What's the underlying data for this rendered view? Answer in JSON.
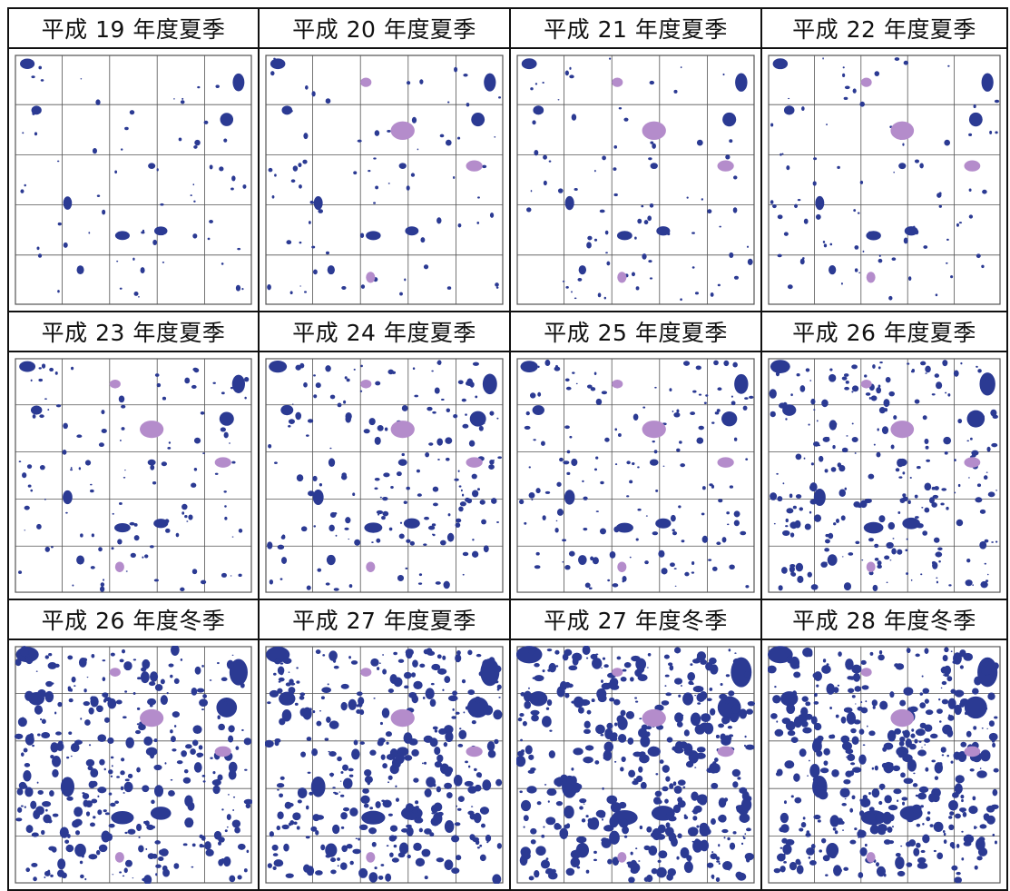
{
  "panels": [
    {
      "label": "平成 19 年度夏季",
      "density": 60
    },
    {
      "label": "平成 20 年度夏季",
      "density": 70
    },
    {
      "label": "平成 21 年度夏季",
      "density": 78
    },
    {
      "label": "平成 22 年度夏季",
      "density": 80
    },
    {
      "label": "平成 23 年度夏季",
      "density": 110
    },
    {
      "label": "平成 24 年度夏季",
      "density": 170
    },
    {
      "label": "平成 25 年度夏季",
      "density": 150
    },
    {
      "label": "平成 26 年度夏季",
      "density": 240
    },
    {
      "label": "平成 26 年度冬季",
      "density": 330
    },
    {
      "label": "平成 27 年度夏季",
      "density": 360
    },
    {
      "label": "平成 27 年度冬季",
      "density": 430
    },
    {
      "label": "平成 28 年度冬季",
      "density": 420
    }
  ],
  "colors": {
    "patch": "#2b3a93",
    "highlight": "#b48ccb",
    "gridline": "#555555"
  }
}
